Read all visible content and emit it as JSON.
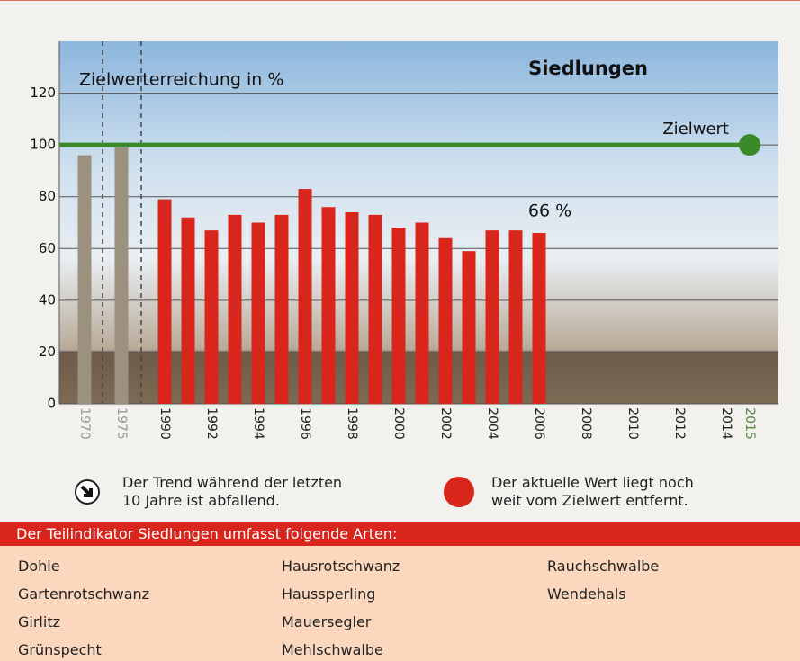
{
  "chart_data": {
    "type": "bar",
    "title": "Siedlungen",
    "y_label": "Zielwerterreichung in %",
    "categories": [
      "1970",
      "1975",
      "1990",
      null,
      "1992",
      null,
      "1994",
      null,
      "1996",
      null,
      "1998",
      null,
      "2000",
      null,
      "2002",
      null,
      "2004",
      null,
      "2006",
      null,
      "2008",
      null,
      "2010",
      null,
      "2012",
      null,
      "2014",
      "2015"
    ],
    "values": [
      96,
      99,
      79,
      72,
      67,
      73,
      70,
      73,
      83,
      76,
      74,
      73,
      68,
      70,
      64,
      59,
      67,
      67,
      66,
      null,
      null,
      null,
      null,
      null,
      null,
      null,
      null,
      null
    ],
    "value_labels": [
      null,
      null,
      null,
      null,
      null,
      null,
      null,
      null,
      null,
      null,
      null,
      null,
      null,
      null,
      null,
      null,
      null,
      null,
      "66 %",
      null,
      null,
      null,
      null,
      null,
      null,
      null,
      null,
      null
    ],
    "bar_colors": [
      "#9c907f",
      "#9c907f",
      "#d9261c",
      "#d9261c",
      "#d9261c",
      "#d9261c",
      "#d9261c",
      "#d9261c",
      "#d9261c",
      "#d9261c",
      "#d9261c",
      "#d9261c",
      "#d9261c",
      "#d9261c",
      "#d9261c",
      "#d9261c",
      "#d9261c",
      "#d9261c",
      "#d9261c",
      "#d9261c",
      "#d9261c",
      "#d9261c",
      "#d9261c",
      "#d9261c",
      "#d9261c",
      "#d9261c",
      "#d9261c",
      "#d9261c"
    ],
    "target": {
      "label": "Zielwert",
      "value": 100,
      "color": "#3b8a2a"
    },
    "ylim": [
      0,
      140
    ],
    "yticks": [
      0,
      20,
      40,
      60,
      80,
      100,
      120
    ],
    "grid": true
  },
  "notes": [
    {
      "lines": [
        "Der Trend während der letzten",
        "10 Jahre ist abfallend."
      ]
    },
    {
      "lines": [
        "Der aktuelle Wert liegt noch",
        "weit vom Zielwert entfernt."
      ]
    }
  ],
  "species": {
    "header": "Der Teilindikator Siedlungen umfasst folgende Arten:",
    "columns": [
      [
        "Dohle",
        "Gartenrotschwanz",
        "Girlitz",
        "Grünspecht"
      ],
      [
        "Hausrotschwanz",
        "Haussperling",
        "Mauersegler",
        "Mehlschwalbe"
      ],
      [
        "Rauchschwalbe",
        "Wendehals"
      ]
    ]
  }
}
